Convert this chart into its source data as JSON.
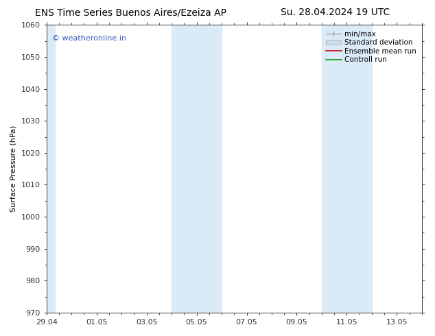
{
  "title_left": "ENS Time Series Buenos Aires/Ezeiza AP",
  "title_right": "Su. 28.04.2024 19 UTC",
  "ylabel": "Surface Pressure (hPa)",
  "ylim": [
    970,
    1060
  ],
  "yticks": [
    970,
    980,
    990,
    1000,
    1010,
    1020,
    1030,
    1040,
    1050,
    1060
  ],
  "xtick_positions": [
    0,
    2,
    4,
    6,
    8,
    10,
    12,
    14
  ],
  "xtick_labels": [
    "29.04",
    "01.05",
    "03.05",
    "05.05",
    "07.05",
    "09.05",
    "11.05",
    "13.05"
  ],
  "xlim": [
    0,
    15
  ],
  "shaded_bands": [
    {
      "xstart": -0.05,
      "xend": 0.35
    },
    {
      "xstart": 5.0,
      "xend": 7.0
    },
    {
      "xstart": 11.0,
      "xend": 13.0
    }
  ],
  "shaded_color": "#daeaf7",
  "watermark_text": "© weatheronline.in",
  "watermark_color": "#3355bb",
  "bg_color": "#ffffff",
  "title_fontsize": 10,
  "axis_label_fontsize": 8,
  "tick_fontsize": 8,
  "legend_fontsize": 7.5,
  "minmax_color": "#aaaaaa",
  "std_color": "#c8dcee",
  "ens_color": "#cc0000",
  "ctrl_color": "#009900"
}
